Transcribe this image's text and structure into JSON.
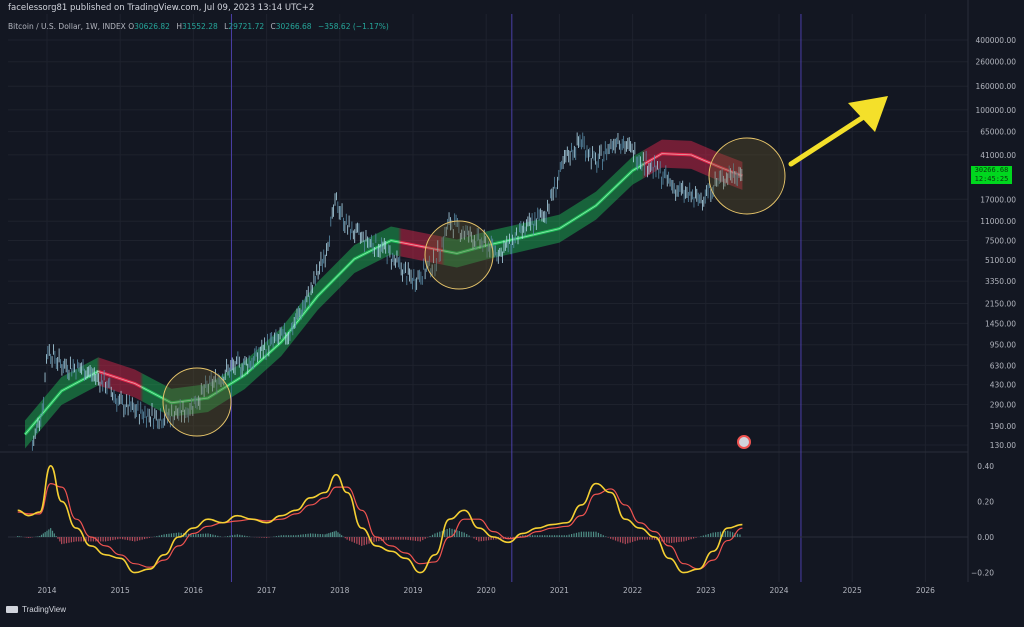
{
  "header": {
    "publisher": "facelessorg81 published on TradingView.com, Jul 09, 2023 13:14 UTC+2"
  },
  "symbol": {
    "name": "Bitcoin / U.S. Dollar, 1W, INDEX",
    "open_label": "O",
    "open": "30626.82",
    "high_label": "H",
    "high": "31552.28",
    "low_label": "L",
    "low": "29721.72",
    "close_label": "C",
    "close": "30266.68",
    "change": "−358.62 (−1.17%)"
  },
  "price_badge": {
    "price": "30266.68",
    "countdown": "12:45:25"
  },
  "footer": {
    "brand": "TradingView"
  },
  "colors": {
    "background": "#131722",
    "candle_up": "#aed7e8",
    "candle_down": "#5a8da8",
    "band_green": "#1fbf5a",
    "band_red": "#e5274d",
    "oscillator": "#f5d033",
    "signal": "#ef5350",
    "arrow": "#f4e02a",
    "circle_fill": "#6b5a2a"
  },
  "icons": {
    "events": "earnings-event-icon",
    "arrow": "up-right-arrow-icon"
  },
  "chart_data": [
    {
      "type": "line",
      "pane": "price",
      "scale": "log",
      "x_tick_labels": [
        "2014",
        "2015",
        "2016",
        "2017",
        "2018",
        "2019",
        "2020",
        "2021",
        "2022",
        "2023",
        "2024",
        "2025",
        "2026"
      ],
      "y_tick_labels": [
        "400000.00",
        "260000.00",
        "160000.00",
        "100000.00",
        "65000.00",
        "41000.00",
        "17000.00",
        "11000.00",
        "7500.00",
        "5100.00",
        "3350.00",
        "2150.00",
        "1450.00",
        "950.00",
        "630.00",
        "430.00",
        "290.00",
        "190.00",
        "130.00"
      ],
      "series": [
        {
          "values_x": [
            2013.8,
            2013.95,
            2014.0,
            2014.2,
            2014.5,
            2014.8,
            2015.0,
            2015.3,
            2015.6,
            2015.9,
            2016.2,
            2016.5,
            2016.8,
            2017.0,
            2017.3,
            2017.6,
            2017.8,
            2017.95,
            2018.1,
            2018.3,
            2018.6,
            2018.9,
            2019.0,
            2019.3,
            2019.5,
            2019.7,
            2019.9,
            2020.2,
            2020.5,
            2020.8,
            2020.95,
            2021.1,
            2021.3,
            2021.5,
            2021.8,
            2021.9,
            2022.1,
            2022.4,
            2022.6,
            2022.9,
            2023.1,
            2023.3,
            2023.5
          ],
          "values_y": [
            130,
            300,
            900,
            650,
            600,
            450,
            300,
            250,
            230,
            260,
            420,
            600,
            700,
            950,
            1200,
            2700,
            6000,
            17000,
            10000,
            8000,
            6500,
            4000,
            3500,
            5000,
            11000,
            9000,
            7500,
            6000,
            9200,
            13000,
            23000,
            40000,
            56000,
            35000,
            60000,
            50000,
            40000,
            28000,
            21000,
            17000,
            23000,
            28000,
            30266
          ]
        }
      ]
    },
    {
      "type": "line",
      "pane": "oscillator",
      "y_tick_labels": [
        "0.40",
        "0.20",
        "0.00",
        "−0.20"
      ],
      "ylim": [
        -0.22,
        0.42
      ],
      "x": [
        2013.6,
        2013.75,
        2013.9,
        2014.05,
        2014.2,
        2014.4,
        2014.6,
        2014.8,
        2015.0,
        2015.2,
        2015.4,
        2015.6,
        2015.8,
        2016.0,
        2016.2,
        2016.4,
        2016.6,
        2016.8,
        2017.0,
        2017.2,
        2017.4,
        2017.6,
        2017.8,
        2017.95,
        2018.1,
        2018.3,
        2018.5,
        2018.7,
        2018.9,
        2019.1,
        2019.3,
        2019.5,
        2019.7,
        2019.9,
        2020.1,
        2020.3,
        2020.5,
        2020.7,
        2020.9,
        2021.1,
        2021.3,
        2021.5,
        2021.7,
        2021.9,
        2022.1,
        2022.3,
        2022.5,
        2022.7,
        2022.9,
        2023.1,
        2023.3,
        2023.5
      ],
      "series": [
        {
          "values": [
            0.15,
            0.12,
            0.14,
            0.4,
            0.2,
            0.05,
            -0.05,
            -0.1,
            -0.12,
            -0.2,
            -0.18,
            -0.1,
            0.0,
            0.05,
            0.1,
            0.08,
            0.12,
            0.1,
            0.08,
            0.12,
            0.15,
            0.22,
            0.25,
            0.35,
            0.25,
            0.05,
            -0.05,
            -0.08,
            -0.12,
            -0.2,
            -0.1,
            0.1,
            0.15,
            0.05,
            0.0,
            -0.03,
            0.02,
            0.05,
            0.07,
            0.08,
            0.18,
            0.3,
            0.25,
            0.1,
            0.05,
            0.0,
            -0.12,
            -0.2,
            -0.18,
            -0.08,
            0.05,
            0.07
          ]
        },
        {
          "values": [
            0.14,
            0.13,
            0.13,
            0.3,
            0.28,
            0.1,
            0.0,
            -0.05,
            -0.1,
            -0.15,
            -0.17,
            -0.13,
            -0.05,
            0.02,
            0.06,
            0.08,
            0.09,
            0.1,
            0.09,
            0.1,
            0.13,
            0.18,
            0.22,
            0.28,
            0.28,
            0.15,
            0.0,
            -0.05,
            -0.09,
            -0.15,
            -0.14,
            0.0,
            0.1,
            0.1,
            0.03,
            -0.01,
            0.0,
            0.03,
            0.05,
            0.06,
            0.12,
            0.24,
            0.27,
            0.18,
            0.08,
            0.03,
            -0.05,
            -0.15,
            -0.18,
            -0.13,
            -0.02,
            0.05
          ]
        }
      ]
    }
  ]
}
